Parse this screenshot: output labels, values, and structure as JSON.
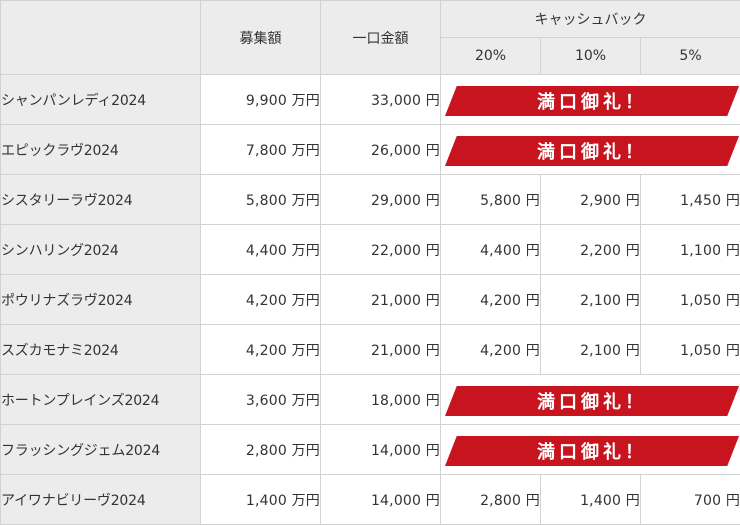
{
  "header": {
    "col_recruit": "募集額",
    "col_unit": "一口金額",
    "col_cashback": "キャッシュバック",
    "sub_cols": [
      "20%",
      "10%",
      "5%"
    ]
  },
  "rows": [
    {
      "name": "シャンパンレディ2024",
      "recruit": "9,900 万円",
      "unit": "33,000 円",
      "sold_out": true,
      "sold_label": "満口御礼！"
    },
    {
      "name": "エピックラヴ2024",
      "recruit": "7,800 万円",
      "unit": "26,000 円",
      "sold_out": true,
      "sold_label": "満口御礼！"
    },
    {
      "name": "シスタリーラヴ2024",
      "recruit": "5,800 万円",
      "unit": "29,000 円",
      "sold_out": false,
      "cb": [
        "5,800 円",
        "2,900 円",
        "1,450 円"
      ]
    },
    {
      "name": "シンハリング2024",
      "recruit": "4,400 万円",
      "unit": "22,000 円",
      "sold_out": false,
      "cb": [
        "4,400 円",
        "2,200 円",
        "1,100 円"
      ]
    },
    {
      "name": "ポウリナズラヴ2024",
      "recruit": "4,200 万円",
      "unit": "21,000 円",
      "sold_out": false,
      "cb": [
        "4,200 円",
        "2,100 円",
        "1,050 円"
      ]
    },
    {
      "name": "スズカモナミ2024",
      "recruit": "4,200 万円",
      "unit": "21,000 円",
      "sold_out": false,
      "cb": [
        "4,200 円",
        "2,100 円",
        "1,050 円"
      ]
    },
    {
      "name": "ホートンプレインズ2024",
      "recruit": "3,600 万円",
      "unit": "18,000 円",
      "sold_out": true,
      "sold_label": "満口御礼！"
    },
    {
      "name": "フラッシングジェム2024",
      "recruit": "2,800 万円",
      "unit": "14,000 円",
      "sold_out": true,
      "sold_label": "満口御礼！"
    },
    {
      "name": "アイワナビリーヴ2024",
      "recruit": "1,400 万円",
      "unit": "14,000 円",
      "sold_out": false,
      "cb": [
        "2,800 円",
        "1,400 円",
        "700 円"
      ]
    }
  ],
  "colors": {
    "header_bg": "#ececec",
    "banner_red": "#c8141e",
    "border": "#d2d2d2"
  }
}
